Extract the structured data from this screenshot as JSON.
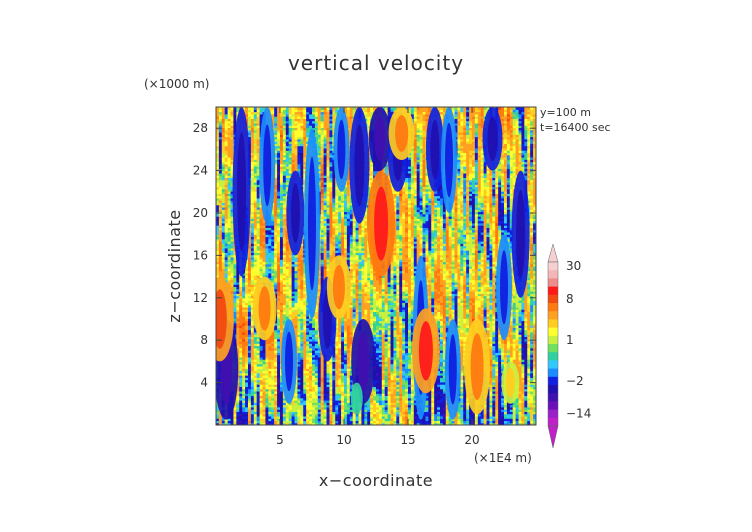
{
  "chart_data": {
    "type": "heatmap",
    "title": "vertical velocity",
    "xlabel": "x−coordinate",
    "ylabel": "z−coordinate",
    "x_unit": "(×1E4 m)",
    "y_unit": "(×1000 m)",
    "annotations": [
      "y=100  m",
      "t=16400 sec"
    ],
    "xlim": [
      0,
      25
    ],
    "ylim": [
      0,
      30
    ],
    "x_ticks": [
      5,
      10,
      15,
      20
    ],
    "y_ticks": [
      4,
      8,
      12,
      16,
      20,
      24,
      28
    ],
    "colorbar": {
      "tick_labels": [
        {
          "label": "30",
          "value": 30
        },
        {
          "label": "8",
          "value": 8
        },
        {
          "label": "1",
          "value": 1
        },
        {
          "label": "−2",
          "value": -2
        },
        {
          "label": "−14",
          "value": -14
        }
      ],
      "levels": [
        {
          "value": 30,
          "color": "#f6d0d0"
        },
        {
          "value": 20,
          "color": "#f4b6b6"
        },
        {
          "value": 14,
          "color": "#ef8c8c"
        },
        {
          "value": 10,
          "color": "#ff1a1a"
        },
        {
          "value": 8,
          "color": "#f24a10"
        },
        {
          "value": 6,
          "color": "#ff7a10"
        },
        {
          "value": 4,
          "color": "#ffa020"
        },
        {
          "value": 3,
          "color": "#ffcc20"
        },
        {
          "value": 2,
          "color": "#ffff30"
        },
        {
          "value": 1,
          "color": "#c8f040"
        },
        {
          "value": 0.5,
          "color": "#70e060"
        },
        {
          "value": 0,
          "color": "#30d0a0"
        },
        {
          "value": -0.5,
          "color": "#30c8ff"
        },
        {
          "value": -1,
          "color": "#1a8cff"
        },
        {
          "value": -2,
          "color": "#1020e0"
        },
        {
          "value": -4,
          "color": "#2010b0"
        },
        {
          "value": -6,
          "color": "#4010b0"
        },
        {
          "value": -10,
          "color": "#6a10b8"
        },
        {
          "value": -14,
          "color": "#9a20c8"
        },
        {
          "value": -20,
          "color": "#c020c8"
        }
      ]
    },
    "columns": [
      {
        "x": 0.8,
        "z0": 0.5,
        "z1": 10,
        "w": -6
      },
      {
        "x": 2.0,
        "z0": 14,
        "z1": 30,
        "w": -3
      },
      {
        "x": 4.0,
        "z0": 19,
        "z1": 30,
        "w": -2
      },
      {
        "x": 5.7,
        "z0": 2,
        "z1": 10,
        "w": -2
      },
      {
        "x": 6.2,
        "z0": 16,
        "z1": 24,
        "w": -3
      },
      {
        "x": 7.5,
        "z0": 10,
        "z1": 28,
        "w": -2
      },
      {
        "x": 8.7,
        "z0": 6,
        "z1": 14,
        "w": -3
      },
      {
        "x": 9.8,
        "z0": 22,
        "z1": 30,
        "w": -2
      },
      {
        "x": 11.2,
        "z0": 19,
        "z1": 30,
        "w": -4
      },
      {
        "x": 11.5,
        "z0": 2,
        "z1": 10,
        "w": -6
      },
      {
        "x": 12.8,
        "z0": 24,
        "z1": 30,
        "w": -5
      },
      {
        "x": 14.2,
        "z0": 22,
        "z1": 29,
        "w": -4
      },
      {
        "x": 16.0,
        "z0": 0.5,
        "z1": 16,
        "w": -2
      },
      {
        "x": 17.1,
        "z0": 22,
        "z1": 30,
        "w": -3
      },
      {
        "x": 18.2,
        "z0": 20,
        "z1": 30,
        "w": -2
      },
      {
        "x": 18.5,
        "z0": 0.5,
        "z1": 10,
        "w": -2
      },
      {
        "x": 21.6,
        "z0": 24,
        "z1": 30,
        "w": -4
      },
      {
        "x": 22.5,
        "z0": 8,
        "z1": 18,
        "w": -2
      },
      {
        "x": 23.8,
        "z0": 12,
        "z1": 24,
        "w": -3
      },
      {
        "x": 12.9,
        "z0": 14,
        "z1": 24,
        "w": 12
      },
      {
        "x": 16.4,
        "z0": 3,
        "z1": 11,
        "w": 10
      },
      {
        "x": 20.4,
        "z0": 1,
        "z1": 10,
        "w": 7
      },
      {
        "x": 0.3,
        "z0": 6,
        "z1": 14,
        "w": 8
      },
      {
        "x": 14.5,
        "z0": 25,
        "z1": 30,
        "w": 7
      },
      {
        "x": 3.8,
        "z0": 8,
        "z1": 14,
        "w": 6
      },
      {
        "x": 9.6,
        "z0": 10,
        "z1": 16,
        "w": 6
      },
      {
        "x": 23.0,
        "z0": 2,
        "z1": 6,
        "w": 3
      },
      {
        "x": 11.0,
        "z0": 1,
        "z1": 4,
        "w": 0
      }
    ]
  }
}
